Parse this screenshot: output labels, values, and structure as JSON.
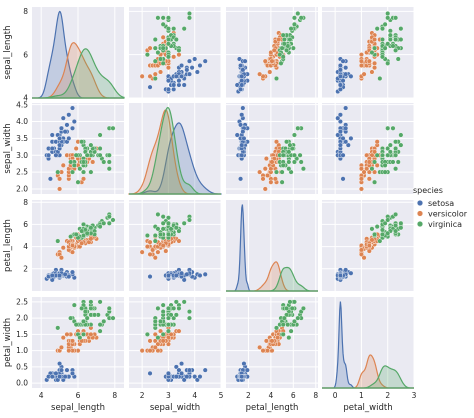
{
  "chart_data": {
    "type": "scatter",
    "title": "",
    "variables": [
      "sepal_length",
      "sepal_width",
      "petal_length",
      "petal_width"
    ],
    "axis_labels": [
      "sepal_length",
      "sepal_width",
      "petal_length",
      "petal_width"
    ],
    "ticks": {
      "sepal_length": [
        4,
        6,
        8
      ],
      "sepal_width": [
        2.0,
        2.5,
        3.0,
        3.5,
        4.0,
        4.5
      ],
      "petal_length": [
        2,
        4,
        6,
        8
      ],
      "petal_width": [
        0.0,
        0.5,
        1.0,
        1.5,
        2.0,
        2.5
      ]
    },
    "tick_text": {
      "sepal_length": [
        "4",
        "6",
        "8"
      ],
      "sepal_width": [
        "2.0",
        "2.5",
        "3.0",
        "3.5",
        "4.0",
        "4.5"
      ],
      "petal_length": [
        "2",
        "4",
        "6",
        "8"
      ],
      "petal_width": [
        "0.0",
        "0.5",
        "1.0",
        "1.5",
        "2.0",
        "2.5"
      ]
    },
    "x_ticks": {
      "sepal_length": [
        4,
        6,
        8
      ],
      "sepal_width": [
        2,
        3,
        4,
        5
      ],
      "petal_length": [
        2,
        4,
        6,
        8
      ],
      "petal_width": [
        0,
        1,
        2,
        3
      ]
    },
    "x_tick_text": {
      "sepal_length": [
        "4",
        "6",
        "8"
      ],
      "sepal_width": [
        "2",
        "3",
        "4",
        "5"
      ],
      "petal_length": [
        "2",
        "4",
        "6",
        "8"
      ],
      "petal_width": [
        "0",
        "1",
        "2",
        "3"
      ]
    },
    "ranges": {
      "sepal_length": [
        3.5,
        8.5
      ],
      "sepal_width": [
        1.85,
        4.55
      ],
      "petal_length": [
        0,
        8.2
      ],
      "petal_width": [
        -0.15,
        2.65
      ]
    },
    "y_ranges": {
      "sepal_length": [
        4.0,
        8.2
      ]
    },
    "x_ranges": {
      "sepal_width": [
        1.5,
        5.0
      ],
      "petal_width": [
        -0.5,
        3.0
      ]
    },
    "legend": {
      "title": "species",
      "placement": "right",
      "entries": [
        "setosa",
        "versicolor",
        "virginica"
      ]
    },
    "series": [
      {
        "name": "setosa",
        "color": "#4c72b0",
        "points": [
          [
            5.1,
            3.5,
            1.4,
            0.2
          ],
          [
            4.9,
            3.0,
            1.4,
            0.2
          ],
          [
            4.7,
            3.2,
            1.3,
            0.2
          ],
          [
            4.6,
            3.1,
            1.5,
            0.2
          ],
          [
            5.0,
            3.6,
            1.4,
            0.2
          ],
          [
            5.4,
            3.9,
            1.7,
            0.4
          ],
          [
            4.6,
            3.4,
            1.4,
            0.3
          ],
          [
            5.0,
            3.4,
            1.5,
            0.2
          ],
          [
            4.4,
            2.9,
            1.4,
            0.2
          ],
          [
            4.9,
            3.1,
            1.5,
            0.1
          ],
          [
            5.4,
            3.7,
            1.5,
            0.2
          ],
          [
            4.8,
            3.4,
            1.6,
            0.2
          ],
          [
            4.8,
            3.0,
            1.4,
            0.1
          ],
          [
            4.3,
            3.0,
            1.1,
            0.1
          ],
          [
            5.8,
            4.0,
            1.2,
            0.2
          ],
          [
            5.7,
            4.4,
            1.5,
            0.4
          ],
          [
            5.4,
            3.9,
            1.3,
            0.4
          ],
          [
            5.1,
            3.5,
            1.4,
            0.3
          ],
          [
            5.7,
            3.8,
            1.7,
            0.3
          ],
          [
            5.1,
            3.8,
            1.5,
            0.3
          ],
          [
            5.4,
            3.4,
            1.7,
            0.2
          ],
          [
            5.1,
            3.7,
            1.5,
            0.4
          ],
          [
            4.6,
            3.6,
            1.0,
            0.2
          ],
          [
            5.1,
            3.3,
            1.7,
            0.5
          ],
          [
            4.8,
            3.4,
            1.9,
            0.2
          ],
          [
            5.0,
            3.0,
            1.6,
            0.2
          ],
          [
            5.0,
            3.4,
            1.6,
            0.4
          ],
          [
            5.2,
            3.5,
            1.5,
            0.2
          ],
          [
            5.2,
            3.4,
            1.4,
            0.2
          ],
          [
            4.7,
            3.2,
            1.6,
            0.2
          ],
          [
            4.8,
            3.1,
            1.6,
            0.2
          ],
          [
            5.4,
            3.4,
            1.5,
            0.4
          ],
          [
            5.2,
            4.1,
            1.5,
            0.1
          ],
          [
            5.5,
            4.2,
            1.4,
            0.2
          ],
          [
            4.9,
            3.1,
            1.5,
            0.2
          ],
          [
            5.0,
            3.2,
            1.2,
            0.2
          ],
          [
            5.5,
            3.5,
            1.3,
            0.2
          ],
          [
            4.9,
            3.6,
            1.4,
            0.1
          ],
          [
            4.4,
            3.0,
            1.3,
            0.2
          ],
          [
            5.1,
            3.4,
            1.5,
            0.2
          ],
          [
            5.0,
            3.5,
            1.3,
            0.3
          ],
          [
            4.5,
            2.3,
            1.3,
            0.3
          ],
          [
            4.4,
            3.2,
            1.3,
            0.2
          ],
          [
            5.0,
            3.5,
            1.6,
            0.6
          ],
          [
            5.1,
            3.8,
            1.9,
            0.4
          ],
          [
            4.8,
            3.0,
            1.4,
            0.3
          ],
          [
            5.1,
            3.8,
            1.6,
            0.2
          ],
          [
            4.6,
            3.2,
            1.4,
            0.2
          ],
          [
            5.3,
            3.7,
            1.5,
            0.2
          ],
          [
            5.0,
            3.3,
            1.4,
            0.2
          ]
        ]
      },
      {
        "name": "versicolor",
        "color": "#dd8452",
        "points": [
          [
            7.0,
            3.2,
            4.7,
            1.4
          ],
          [
            6.4,
            3.2,
            4.5,
            1.5
          ],
          [
            6.9,
            3.1,
            4.9,
            1.5
          ],
          [
            5.5,
            2.3,
            4.0,
            1.3
          ],
          [
            6.5,
            2.8,
            4.6,
            1.5
          ],
          [
            5.7,
            2.8,
            4.5,
            1.3
          ],
          [
            6.3,
            3.3,
            4.7,
            1.6
          ],
          [
            4.9,
            2.4,
            3.3,
            1.0
          ],
          [
            6.6,
            2.9,
            4.6,
            1.3
          ],
          [
            5.2,
            2.7,
            3.9,
            1.4
          ],
          [
            5.0,
            2.0,
            3.5,
            1.0
          ],
          [
            5.9,
            3.0,
            4.2,
            1.5
          ],
          [
            6.0,
            2.2,
            4.0,
            1.0
          ],
          [
            6.1,
            2.9,
            4.7,
            1.4
          ],
          [
            5.6,
            2.9,
            3.6,
            1.3
          ],
          [
            6.7,
            3.1,
            4.4,
            1.4
          ],
          [
            5.6,
            3.0,
            4.5,
            1.5
          ],
          [
            5.8,
            2.7,
            4.1,
            1.0
          ],
          [
            6.2,
            2.2,
            4.5,
            1.5
          ],
          [
            5.6,
            2.5,
            3.9,
            1.1
          ],
          [
            5.9,
            3.2,
            4.8,
            1.8
          ],
          [
            6.1,
            2.8,
            4.0,
            1.3
          ],
          [
            6.3,
            2.5,
            4.9,
            1.5
          ],
          [
            6.1,
            2.8,
            4.7,
            1.2
          ],
          [
            6.4,
            2.9,
            4.3,
            1.3
          ],
          [
            6.6,
            3.0,
            4.4,
            1.4
          ],
          [
            6.8,
            2.8,
            4.8,
            1.4
          ],
          [
            6.7,
            3.0,
            5.0,
            1.7
          ],
          [
            6.0,
            2.9,
            4.5,
            1.5
          ],
          [
            5.7,
            2.6,
            3.5,
            1.0
          ],
          [
            5.5,
            2.4,
            3.8,
            1.1
          ],
          [
            5.5,
            2.4,
            3.7,
            1.0
          ],
          [
            5.8,
            2.7,
            3.9,
            1.2
          ],
          [
            6.0,
            2.7,
            5.1,
            1.6
          ],
          [
            5.4,
            3.0,
            4.5,
            1.5
          ],
          [
            6.0,
            3.4,
            4.5,
            1.6
          ],
          [
            6.7,
            3.1,
            4.7,
            1.5
          ],
          [
            6.3,
            2.3,
            4.4,
            1.3
          ],
          [
            5.6,
            3.0,
            4.1,
            1.3
          ],
          [
            5.5,
            2.5,
            4.0,
            1.3
          ],
          [
            5.5,
            2.6,
            4.4,
            1.2
          ],
          [
            6.1,
            3.0,
            4.6,
            1.4
          ],
          [
            5.8,
            2.6,
            4.0,
            1.2
          ],
          [
            5.0,
            2.3,
            3.3,
            1.0
          ],
          [
            5.6,
            2.7,
            4.2,
            1.3
          ],
          [
            5.7,
            3.0,
            4.2,
            1.2
          ],
          [
            5.7,
            2.9,
            4.2,
            1.3
          ],
          [
            6.2,
            2.9,
            4.3,
            1.3
          ],
          [
            5.1,
            2.5,
            3.0,
            1.1
          ],
          [
            5.7,
            2.8,
            4.1,
            1.3
          ]
        ]
      },
      {
        "name": "virginica",
        "color": "#55a868",
        "points": [
          [
            6.3,
            3.3,
            6.0,
            2.5
          ],
          [
            5.8,
            2.7,
            5.1,
            1.9
          ],
          [
            7.1,
            3.0,
            5.9,
            2.1
          ],
          [
            6.3,
            2.9,
            5.6,
            1.8
          ],
          [
            6.5,
            3.0,
            5.8,
            2.2
          ],
          [
            7.6,
            3.0,
            6.6,
            2.1
          ],
          [
            4.9,
            2.5,
            4.5,
            1.7
          ],
          [
            7.3,
            2.9,
            6.3,
            1.8
          ],
          [
            6.7,
            2.5,
            5.8,
            1.8
          ],
          [
            7.2,
            3.6,
            6.1,
            2.5
          ],
          [
            6.5,
            3.2,
            5.1,
            2.0
          ],
          [
            6.4,
            2.7,
            5.3,
            1.9
          ],
          [
            6.8,
            3.0,
            5.5,
            2.1
          ],
          [
            5.7,
            2.5,
            5.0,
            2.0
          ],
          [
            5.8,
            2.8,
            5.1,
            2.4
          ],
          [
            6.4,
            3.2,
            5.3,
            2.3
          ],
          [
            6.5,
            3.0,
            5.5,
            1.8
          ],
          [
            7.7,
            3.8,
            6.7,
            2.2
          ],
          [
            7.7,
            2.6,
            6.9,
            2.3
          ],
          [
            6.0,
            2.2,
            5.0,
            1.5
          ],
          [
            6.9,
            3.2,
            5.7,
            2.3
          ],
          [
            5.6,
            2.8,
            4.9,
            2.0
          ],
          [
            7.7,
            2.8,
            6.7,
            2.0
          ],
          [
            6.3,
            2.7,
            4.9,
            1.8
          ],
          [
            6.7,
            3.3,
            5.7,
            2.1
          ],
          [
            7.2,
            3.2,
            6.0,
            1.8
          ],
          [
            6.2,
            2.8,
            4.8,
            1.8
          ],
          [
            6.1,
            3.0,
            4.9,
            1.8
          ],
          [
            6.4,
            2.8,
            5.6,
            2.1
          ],
          [
            7.2,
            3.0,
            5.8,
            1.6
          ],
          [
            7.4,
            2.8,
            6.1,
            1.9
          ],
          [
            7.9,
            3.8,
            6.4,
            2.0
          ],
          [
            6.4,
            2.8,
            5.6,
            2.2
          ],
          [
            6.3,
            2.8,
            5.1,
            1.5
          ],
          [
            6.1,
            2.6,
            5.6,
            1.4
          ],
          [
            7.7,
            3.0,
            6.1,
            2.3
          ],
          [
            6.3,
            3.4,
            5.6,
            2.4
          ],
          [
            6.4,
            3.1,
            5.5,
            1.8
          ],
          [
            6.0,
            3.0,
            4.8,
            1.8
          ],
          [
            6.9,
            3.1,
            5.4,
            2.1
          ],
          [
            6.7,
            3.1,
            5.6,
            2.4
          ],
          [
            6.9,
            3.1,
            5.1,
            2.3
          ],
          [
            5.8,
            2.7,
            5.1,
            1.9
          ],
          [
            6.8,
            3.2,
            5.9,
            2.3
          ],
          [
            6.7,
            3.3,
            5.7,
            2.5
          ],
          [
            6.7,
            3.0,
            5.2,
            2.3
          ],
          [
            6.3,
            2.5,
            5.0,
            1.9
          ],
          [
            6.5,
            3.0,
            5.2,
            2.0
          ],
          [
            6.2,
            3.4,
            5.4,
            2.3
          ],
          [
            5.9,
            3.0,
            5.1,
            1.8
          ]
        ]
      }
    ]
  }
}
